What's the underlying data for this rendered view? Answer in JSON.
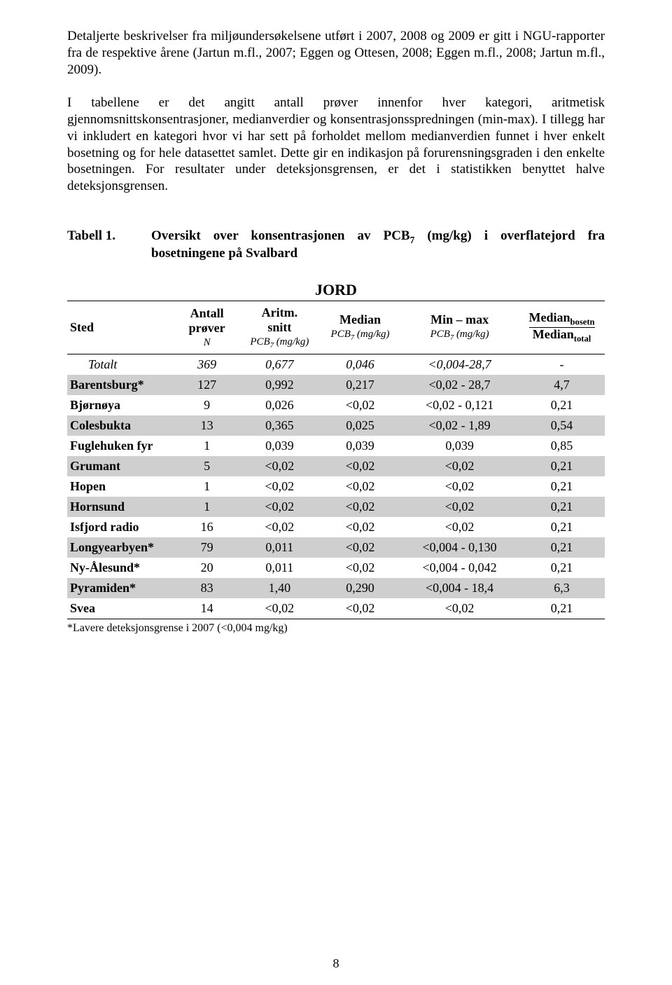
{
  "paragraph1": "Detaljerte beskrivelser fra miljøundersøkelsene utført i 2007, 2008 og 2009 er gitt i NGU-rapporter fra de respektive årene (Jartun m.fl., 2007; Eggen og Ottesen, 2008; Eggen m.fl., 2008; Jartun m.fl., 2009).",
  "paragraph2": "I tabellene er det angitt antall prøver innenfor hver kategori, aritmetisk gjennomsnittskonsentrasjoner, medianverdier og konsentrasjonsspredningen (min-max). I tillegg har vi inkludert en kategori hvor vi har sett på forholdet mellom medianverdien funnet i hver enkelt bosetning og for hele datasettet samlet. Dette gir en indikasjon på forurensningsgraden i den enkelte bosetningen. For resultater under deteksjonsgrensen, er det i statistikken benyttet halve deteksjonsgrensen.",
  "caption": {
    "label": "Tabell 1.",
    "text_a": "Oversikt over konsentrasjonen av PCB",
    "text_b": " (mg/kg) i overflatejord fra bosetningene på Svalbard"
  },
  "tableTitle": "JORD",
  "headers": {
    "c0": "Sted",
    "c1a": "Antall",
    "c1b": "prøver",
    "c1s": "N",
    "c2a": "Aritm.",
    "c2b": "snitt",
    "c2s": "PCB₇ (mg/kg)",
    "c3": "Median",
    "c3s": "PCB₇ (mg/kg)",
    "c4": "Min – max",
    "c4s": "PCB₇ (mg/kg)",
    "c5top": "Medianₐ",
    "c5bot": "Medianₜ",
    "c5top_sub": "bosetn",
    "c5bot_sub": "total"
  },
  "rows": [
    {
      "shade": false,
      "total": true,
      "sted": "Totalt",
      "n": "369",
      "aritm": "0,677",
      "median": "0,046",
      "minmax": "<0,004-28,7",
      "ratio": "-"
    },
    {
      "shade": true,
      "total": false,
      "sted": "Barentsburg*",
      "n": "127",
      "aritm": "0,992",
      "median": "0,217",
      "minmax": "<0,02 - 28,7",
      "ratio": "4,7"
    },
    {
      "shade": false,
      "total": false,
      "sted": "Bjørnøya",
      "n": "9",
      "aritm": "0,026",
      "median": "<0,02",
      "minmax": "<0,02 - 0,121",
      "ratio": "0,21"
    },
    {
      "shade": true,
      "total": false,
      "sted": "Colesbukta",
      "n": "13",
      "aritm": "0,365",
      "median": "0,025",
      "minmax": "<0,02 - 1,89",
      "ratio": "0,54"
    },
    {
      "shade": false,
      "total": false,
      "sted": "Fuglehuken fyr",
      "n": "1",
      "aritm": "0,039",
      "median": "0,039",
      "minmax": "0,039",
      "ratio": "0,85"
    },
    {
      "shade": true,
      "total": false,
      "sted": "Grumant",
      "n": "5",
      "aritm": "<0,02",
      "median": "<0,02",
      "minmax": "<0,02",
      "ratio": "0,21"
    },
    {
      "shade": false,
      "total": false,
      "sted": "Hopen",
      "n": "1",
      "aritm": "<0,02",
      "median": "<0,02",
      "minmax": "<0,02",
      "ratio": "0,21"
    },
    {
      "shade": true,
      "total": false,
      "sted": "Hornsund",
      "n": "1",
      "aritm": "<0,02",
      "median": "<0,02",
      "minmax": "<0,02",
      "ratio": "0,21"
    },
    {
      "shade": false,
      "total": false,
      "sted": "Isfjord radio",
      "n": "16",
      "aritm": "<0,02",
      "median": "<0,02",
      "minmax": "<0,02",
      "ratio": "0,21"
    },
    {
      "shade": true,
      "total": false,
      "sted": "Longyearbyen*",
      "n": "79",
      "aritm": "0,011",
      "median": "<0,02",
      "minmax": "<0,004 - 0,130",
      "ratio": "0,21"
    },
    {
      "shade": false,
      "total": false,
      "sted": "Ny-Ålesund*",
      "n": "20",
      "aritm": "0,011",
      "median": "<0,02",
      "minmax": "<0,004 - 0,042",
      "ratio": "0,21"
    },
    {
      "shade": true,
      "total": false,
      "sted": "Pyramiden*",
      "n": "83",
      "aritm": "1,40",
      "median": "0,290",
      "minmax": "<0,004 - 18,4",
      "ratio": "6,3"
    },
    {
      "shade": false,
      "total": false,
      "sted": "Svea",
      "n": "14",
      "aritm": "<0,02",
      "median": "<0,02",
      "minmax": "<0,02",
      "ratio": "0,21"
    }
  ],
  "footnote": "*Lavere deteksjonsgrense i 2007 (<0,004 mg/kg)",
  "pageNumber": "8",
  "style": {
    "shade_color": "#cfcfcf",
    "text_color": "#000000",
    "bg_color": "#ffffff",
    "col_widths_pct": [
      20,
      12,
      15,
      15,
      22,
      16
    ]
  }
}
